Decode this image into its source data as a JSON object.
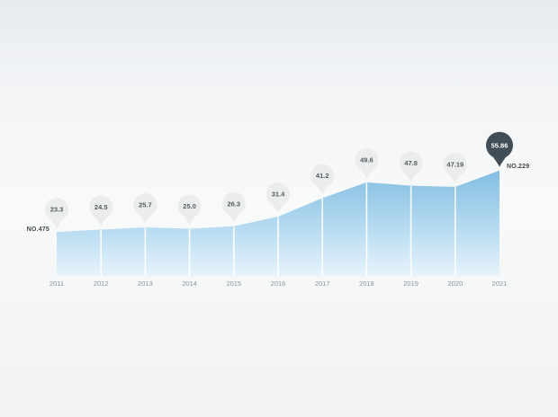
{
  "chart_data": {
    "type": "area",
    "title": "",
    "xlabel": "",
    "ylabel": "",
    "categories": [
      "2011",
      "2012",
      "2013",
      "2014",
      "2015",
      "2016",
      "2017",
      "2018",
      "2019",
      "2020",
      "2021"
    ],
    "values": [
      23.3,
      24.5,
      25.7,
      25.0,
      26.3,
      31.4,
      41.2,
      49.6,
      47.8,
      47.19,
      55.86
    ],
    "value_labels": [
      "23.3",
      "24.5",
      "25.7",
      "25.0",
      "26.3",
      "31.4",
      "41.2",
      "49.6",
      "47.8",
      "47.19",
      "55.86"
    ],
    "highlight_index": 10,
    "start_label": "NO.475",
    "end_label": "NO.229",
    "ylim": [
      0,
      60
    ],
    "grid": false,
    "legend": null,
    "colors": {
      "background_top": "#e8ebee",
      "background_mid": "#f8fafa",
      "background_bottom": "#f0f2f3",
      "area_top": "#7fbce2",
      "area_mid": "#b5daf0",
      "area_bottom": "#e7f3fb",
      "separator": "#ffffff",
      "balloon_fill": "#ebecec",
      "balloon_text": "#565c63",
      "balloon_highlight_fill": "#414d57",
      "balloon_highlight_text": "#ffffff",
      "axis_label": "#8e9499",
      "annotation_text": "#46494d"
    }
  }
}
